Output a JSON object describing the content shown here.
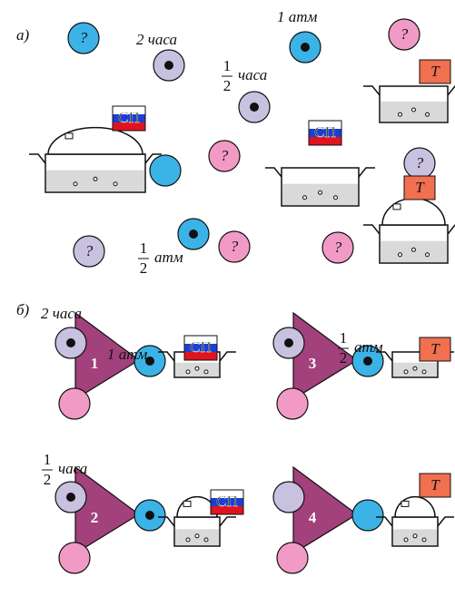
{
  "part_a": {
    "label": "а)",
    "time": "2 часа",
    "pressure": "1 атм",
    "time_fraction": {
      "numerator": "1",
      "denominator": "2",
      "unit": "часа"
    },
    "pressure_fraction": {
      "numerator": "1",
      "denominator": "2",
      "unit": "атм"
    },
    "question_marks": [
      "?",
      "?",
      "?",
      "?",
      "?",
      "?",
      "?"
    ],
    "flags": [
      "СП",
      "СП"
    ],
    "tags": [
      "Т",
      "Т"
    ]
  },
  "part_b": {
    "label": "б)",
    "panels": [
      {
        "number": "1",
        "time": "2 часа",
        "pressure": "1 атм",
        "badge": "СП"
      },
      {
        "number": "3",
        "pressure_fraction": {
          "numerator": "1",
          "denominator": "2",
          "unit": "атм"
        },
        "badge": "Т"
      },
      {
        "number": "2",
        "time_fraction": {
          "numerator": "1",
          "denominator": "2",
          "unit": "часа"
        },
        "badge": "СП"
      },
      {
        "number": "4",
        "badge": "Т"
      }
    ]
  }
}
